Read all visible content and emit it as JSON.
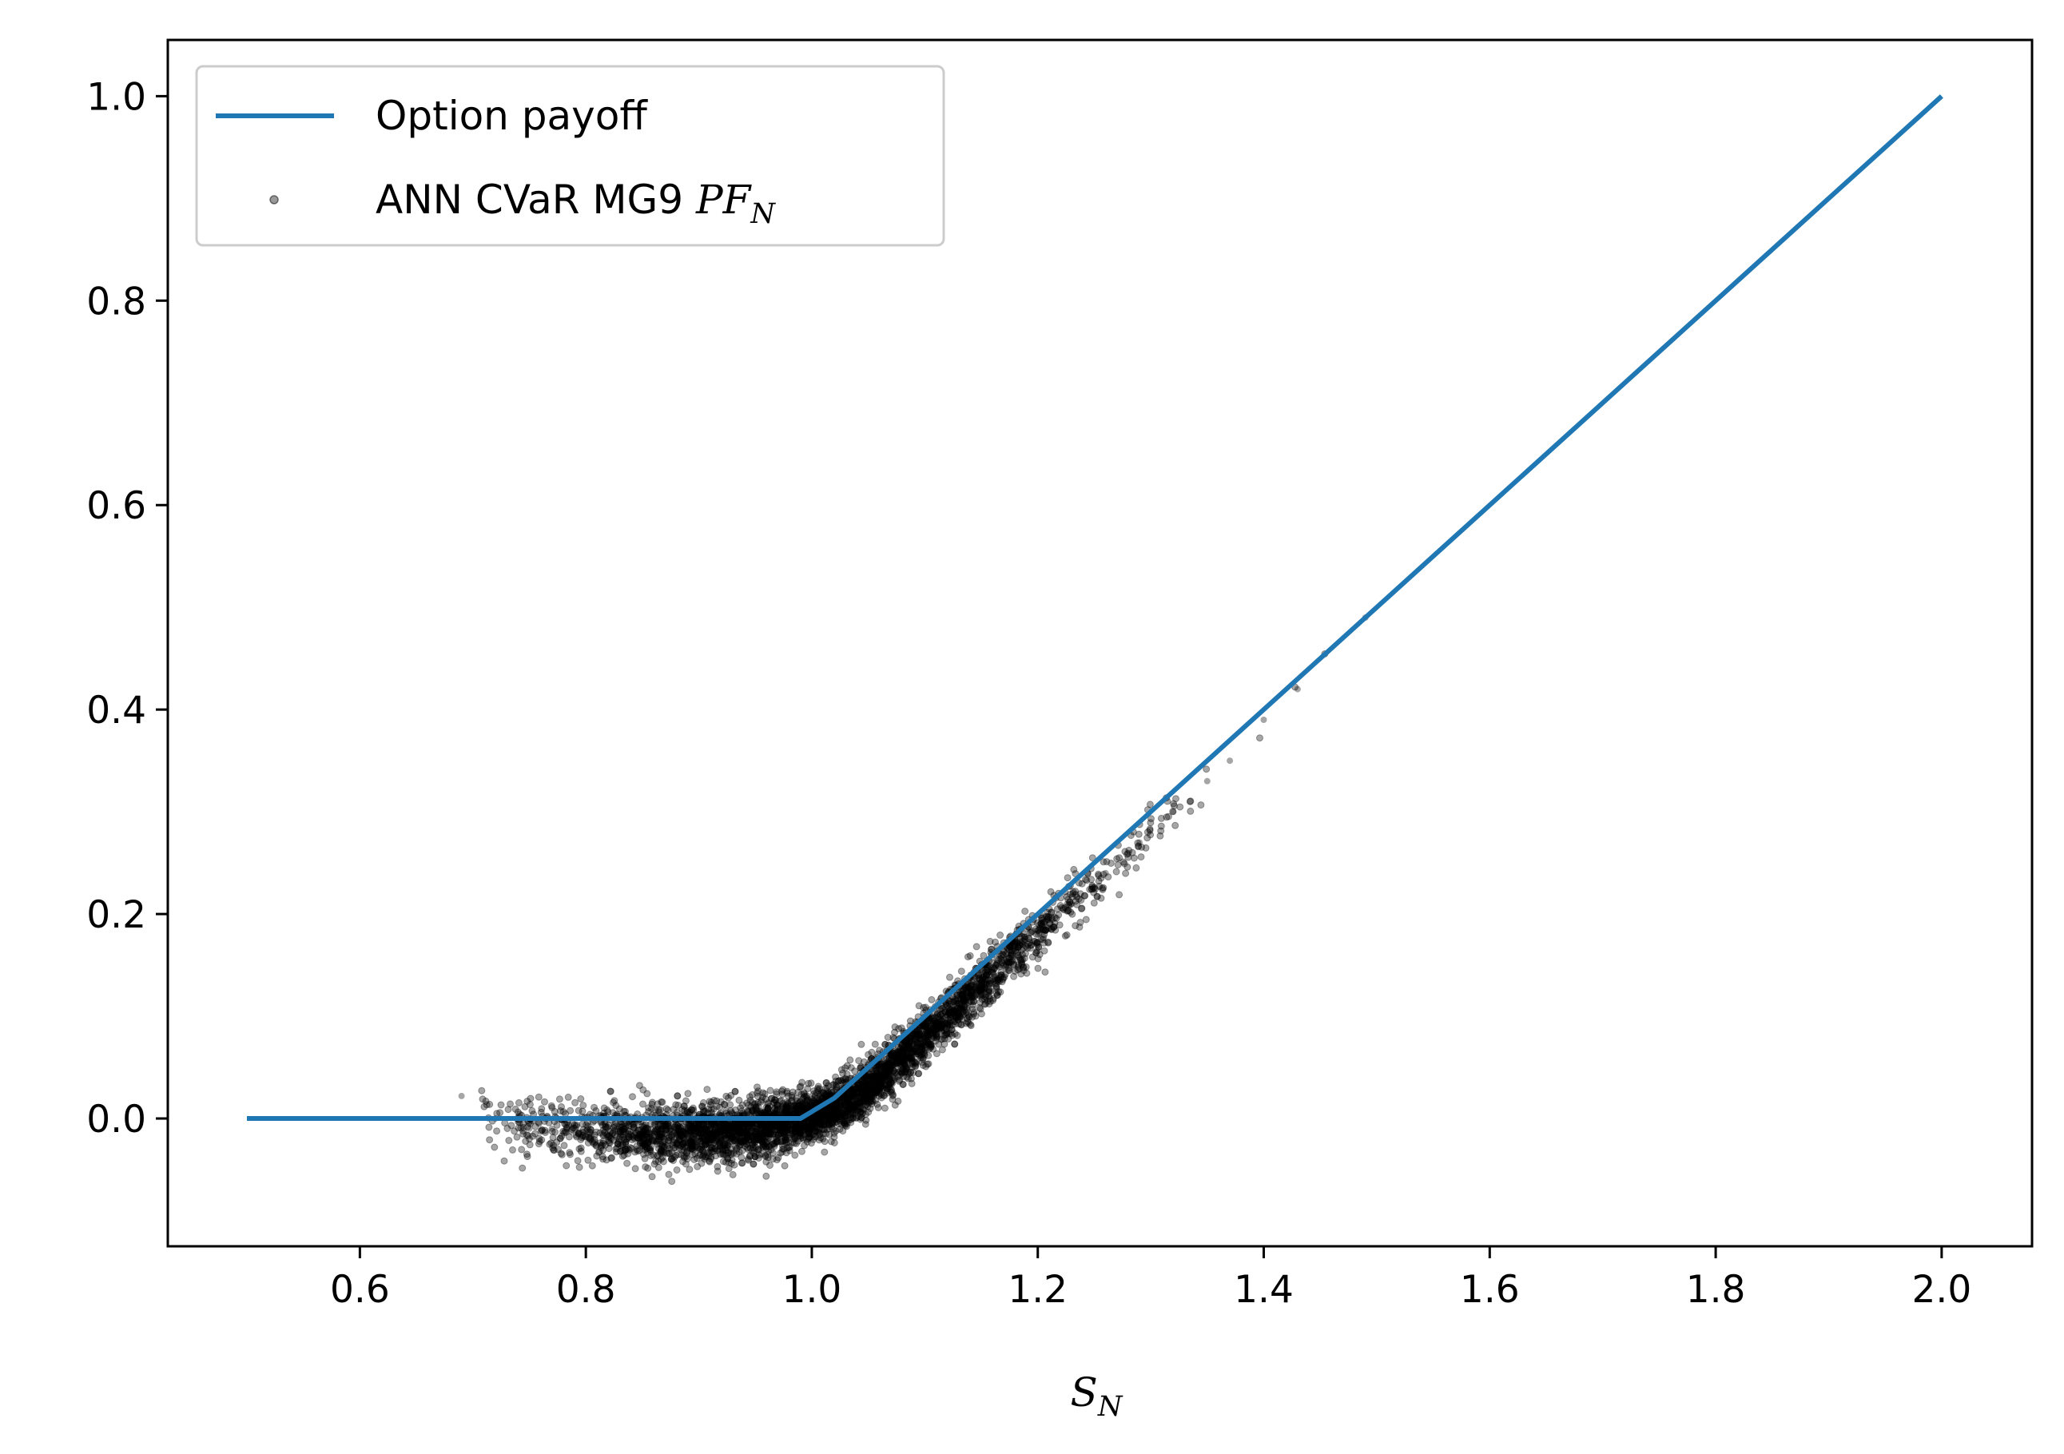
{
  "chart_data": {
    "type": "line+scatter",
    "xlabel": "S",
    "xlabel_subscript": "N",
    "ylabel": "",
    "xlim": [
      0.43,
      2.08
    ],
    "ylim": [
      -0.125,
      1.055
    ],
    "xticks": [
      0.6,
      0.8,
      1.0,
      1.2,
      1.4,
      1.6,
      1.8,
      2.0
    ],
    "xtick_labels": [
      "0.6",
      "0.8",
      "1.0",
      "1.2",
      "1.4",
      "1.6",
      "1.8",
      "2.0"
    ],
    "yticks": [
      0.0,
      0.2,
      0.4,
      0.6,
      0.8,
      1.0
    ],
    "ytick_labels": [
      "0.0",
      "0.2",
      "0.4",
      "0.6",
      "0.8",
      "1.0"
    ],
    "grid": false,
    "legend_position": "upper-left",
    "series": [
      {
        "name": "Option payoff",
        "kind": "line",
        "color": "#1f77b4",
        "x": [
          0.5,
          0.99,
          1.02,
          2.0
        ],
        "y": [
          0.0,
          0.0,
          0.02,
          1.0
        ]
      },
      {
        "name": "ANN CVaR MG9 PF",
        "name_subscript": "N",
        "kind": "scatter",
        "color": "#000000",
        "opacity": 0.35,
        "description_of_cloud": {
          "x_range": [
            0.69,
            1.49
          ],
          "flat_region_x": [
            0.72,
            1.0
          ],
          "flat_region_y_spread": [
            -0.07,
            0.025
          ],
          "slope_region_x": [
            1.0,
            1.43
          ],
          "max_y": 0.49
        },
        "x_samples": [
          0.69,
          0.72,
          0.75,
          0.77,
          0.8,
          0.83,
          0.87,
          0.9,
          0.93,
          0.96,
          0.99,
          1.02,
          1.05,
          1.08,
          1.11,
          1.14,
          1.17,
          1.2,
          1.23,
          1.26,
          1.29,
          1.32,
          1.35,
          1.37,
          1.4,
          1.43,
          1.49
        ],
        "y_samples": [
          0.022,
          0.0,
          -0.01,
          -0.01,
          -0.012,
          -0.014,
          -0.015,
          -0.014,
          -0.013,
          -0.01,
          0.0,
          0.01,
          0.03,
          0.06,
          0.09,
          0.12,
          0.15,
          0.18,
          0.21,
          0.24,
          0.27,
          0.3,
          0.33,
          0.35,
          0.39,
          0.42,
          0.49
        ]
      }
    ]
  }
}
